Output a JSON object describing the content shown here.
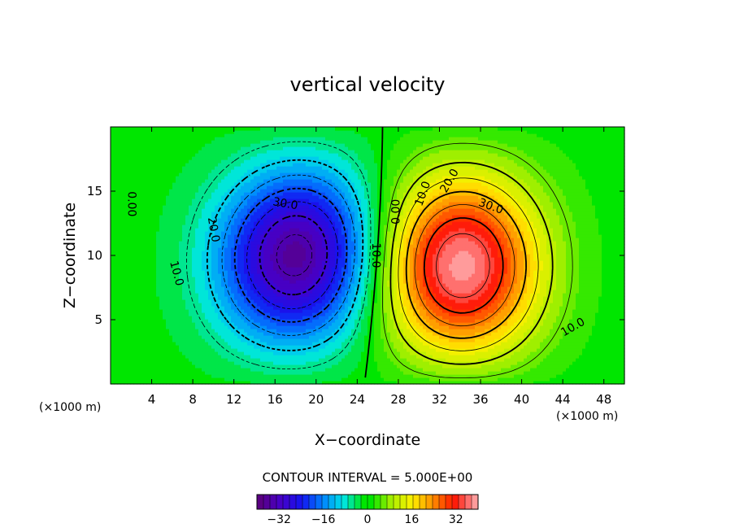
{
  "chart_data": {
    "type": "heatmap",
    "title": "vertical velocity",
    "xlabel": "X−coordinate",
    "ylabel": "Z−coordinate",
    "x_unit_left": "(×1000 m)",
    "x_unit_right": "(×1000 m)",
    "xlim": [
      0,
      50
    ],
    "ylim": [
      0,
      20
    ],
    "x_ticks": [
      4,
      8,
      12,
      16,
      20,
      24,
      28,
      32,
      36,
      40,
      44,
      48
    ],
    "y_ticks": [
      5,
      10,
      15
    ],
    "contour_interval_label": "CONTOUR INTERVAL = 5.000E+00",
    "colorbar": {
      "min": -40,
      "max": 40,
      "ticks": [
        -32,
        -16,
        0,
        16,
        32
      ]
    },
    "sources": [
      {
        "x": 17.8,
        "z": 10.0,
        "amplitude": -39,
        "sx": 5.6,
        "sz": 5.2,
        "tilt": -0.45
      },
      {
        "x": 34.5,
        "z": 9.0,
        "amplitude": 43,
        "sx": 5.6,
        "sz": 5.6,
        "tilt": 0.0
      }
    ],
    "contour_labels": [
      {
        "text": "0.00",
        "x": 2.0,
        "z": 14.0,
        "rotate": 90
      },
      {
        "text": "10.0",
        "x": 6.4,
        "z": 8.6,
        "rotate": 75
      },
      {
        "text": "20.0",
        "x": 10.0,
        "z": 12.0,
        "rotate": 80
      },
      {
        "text": "30.0",
        "x": 17.0,
        "z": 14.0,
        "rotate": 10
      },
      {
        "text": "10.0",
        "x": 25.8,
        "z": 10.0,
        "rotate": 90
      },
      {
        "text": "0.00",
        "x": 27.8,
        "z": 13.4,
        "rotate": -90
      },
      {
        "text": "10.0",
        "x": 30.4,
        "z": 14.8,
        "rotate": -70
      },
      {
        "text": "20.0",
        "x": 33.0,
        "z": 15.8,
        "rotate": -60
      },
      {
        "text": "30.0",
        "x": 37.0,
        "z": 13.8,
        "rotate": 20
      },
      {
        "text": "10.0",
        "x": 45.0,
        "z": 4.4,
        "rotate": -30
      }
    ]
  }
}
